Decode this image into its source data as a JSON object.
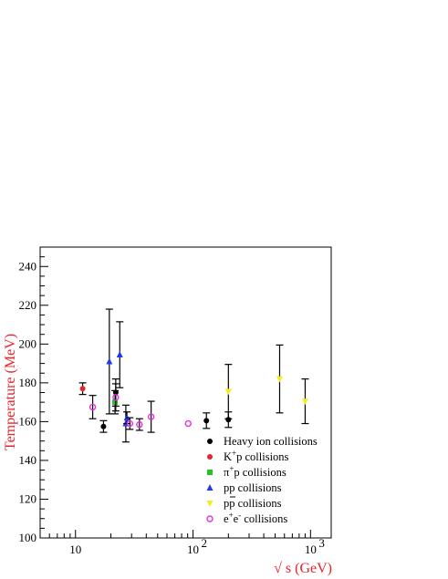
{
  "chart_data": {
    "type": "scatter",
    "title": "",
    "xlabel": "√ s (GeV)",
    "ylabel": "Temperature (MeV)",
    "xscale": "log",
    "xlim": [
      5,
      1500
    ],
    "ylim": [
      100,
      250
    ],
    "grid": false,
    "legend_position": "bottom-right",
    "x_major_ticks": [
      {
        "value": 10,
        "label": "10"
      },
      {
        "value": 100,
        "label": "10",
        "sup": "2"
      },
      {
        "value": 1000,
        "label": "10",
        "sup": "3"
      }
    ],
    "y_ticks": [
      100,
      120,
      140,
      160,
      180,
      200,
      220,
      240
    ],
    "series": [
      {
        "name": "Heavy ion collisions",
        "legend_sup": "",
        "legend_suffix": "",
        "marker": "circle-filled",
        "color": "#000000",
        "points": [
          {
            "x": 17.3,
            "y": 157.5,
            "err": 3
          },
          {
            "x": 22,
            "y": 175,
            "err": 7
          },
          {
            "x": 130,
            "y": 160.5,
            "err": 4
          },
          {
            "x": 200,
            "y": 161,
            "err": 4
          }
        ]
      },
      {
        "name": "K",
        "legend_sup": "+",
        "legend_suffix": "p collisions",
        "marker": "circle-filled",
        "color": "#e8242a",
        "points": [
          {
            "x": 11.5,
            "y": 177,
            "err": 3
          }
        ]
      },
      {
        "name": "π",
        "legend_sup": "+",
        "legend_suffix": "p collisions",
        "marker": "square-filled",
        "color": "#26c126",
        "points": [
          {
            "x": 21.7,
            "y": 170,
            "err": 6
          }
        ]
      },
      {
        "name": "pp collisions",
        "legend_sup": "",
        "legend_suffix": "",
        "marker": "triangle-up",
        "color": "#1f3ae8",
        "points": [
          {
            "x": 19.4,
            "y": 191,
            "err": 27
          },
          {
            "x": 23.8,
            "y": 194.5,
            "err": 17
          },
          {
            "x": 26.8,
            "y": 159,
            "err": 9.5
          },
          {
            "x": 27.4,
            "y": 162,
            "err": 3
          }
        ]
      },
      {
        "name": "pp collisions",
        "overline": true,
        "legend_sup": "",
        "legend_suffix": "",
        "marker": "triangle-down",
        "color": "#f2ee1a",
        "points": [
          {
            "x": 200,
            "y": 175.5,
            "err": 14
          },
          {
            "x": 546,
            "y": 182,
            "err": 17.5
          },
          {
            "x": 900,
            "y": 170.5,
            "err": 11.5
          }
        ]
      },
      {
        "name": "e",
        "legend_sup": "+",
        "legend_mid": "e",
        "legend_sup2": "-",
        "legend_suffix": " collisions",
        "marker": "circle-open",
        "color": "#e231e2",
        "points": [
          {
            "x": 14,
            "y": 167.5,
            "err": 6
          },
          {
            "x": 22,
            "y": 172.5,
            "err": 7
          },
          {
            "x": 29,
            "y": 159,
            "err": 3
          },
          {
            "x": 35,
            "y": 158.5,
            "err": 3
          },
          {
            "x": 44,
            "y": 162.5,
            "err": 8
          },
          {
            "x": 91,
            "y": 159,
            "err": 0
          }
        ]
      }
    ]
  }
}
